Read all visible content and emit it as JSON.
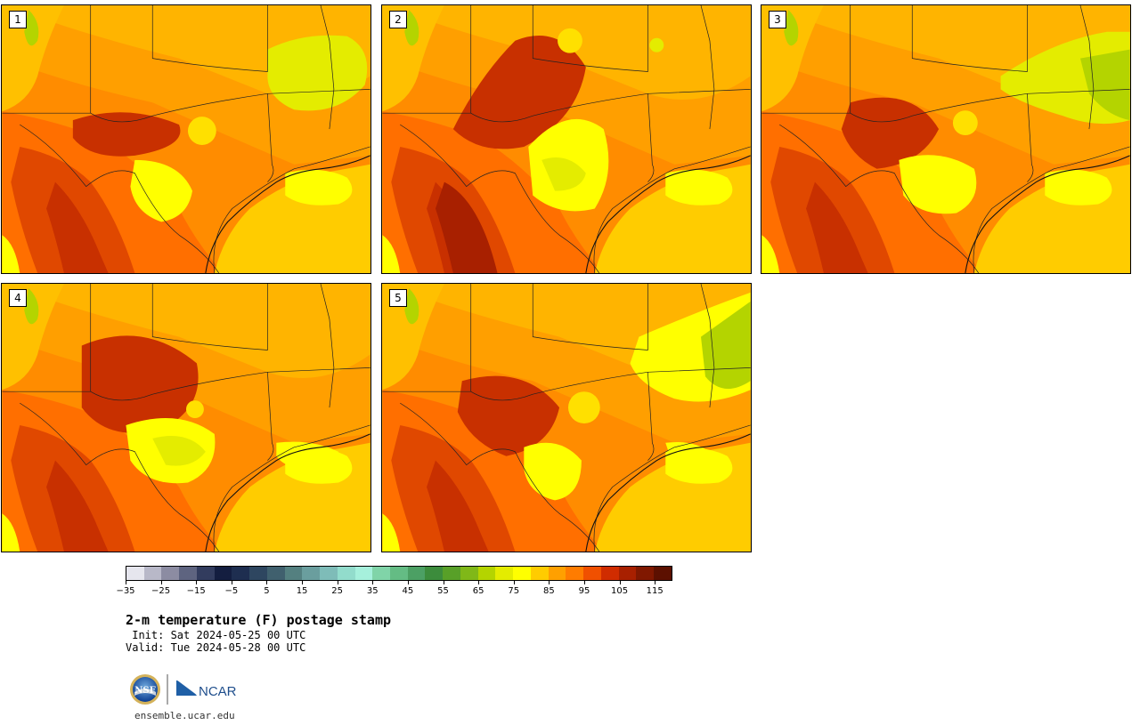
{
  "panels": [
    {
      "label": "1",
      "variant": 0
    },
    {
      "label": "2",
      "variant": 1
    },
    {
      "label": "3",
      "variant": 2
    },
    {
      "label": "4",
      "variant": 3
    },
    {
      "label": "5",
      "variant": 4
    }
  ],
  "colorbar": {
    "min": -35,
    "max": 120,
    "step": 5,
    "tick_labels": [
      "−35",
      "−25",
      "−15",
      "−5",
      "5",
      "15",
      "25",
      "35",
      "45",
      "55",
      "65",
      "75",
      "85",
      "95",
      "105",
      "115"
    ],
    "tick_values": [
      -35,
      -25,
      -15,
      -5,
      5,
      15,
      25,
      35,
      45,
      55,
      65,
      75,
      85,
      95,
      105,
      115
    ],
    "colors": [
      "#e6e6ee",
      "#b8b8c8",
      "#8c8ca2",
      "#5e6480",
      "#323c5e",
      "#141e40",
      "#1e2e50",
      "#2e4660",
      "#40606e",
      "#548080",
      "#6a9e9e",
      "#7ebcb8",
      "#92dccc",
      "#a6f0dc",
      "#80d4a8",
      "#64bc84",
      "#4ca064",
      "#3c8c3c",
      "#58a028",
      "#80b818",
      "#b4d400",
      "#e4ec00",
      "#ffff00",
      "#ffcc00",
      "#ffa000",
      "#ff7c00",
      "#f05000",
      "#d02c00",
      "#a82000",
      "#801800",
      "#5c1000"
    ]
  },
  "title": "2-m temperature (F) postage stamp",
  "init": " Init: Sat 2024-05-25 00 UTC",
  "valid": "Valid: Tue 2024-05-28 00 UTC",
  "logo": {
    "left_text": "NSF",
    "right_text": "NCAR"
  },
  "url": "ensemble.ucar.edu"
}
